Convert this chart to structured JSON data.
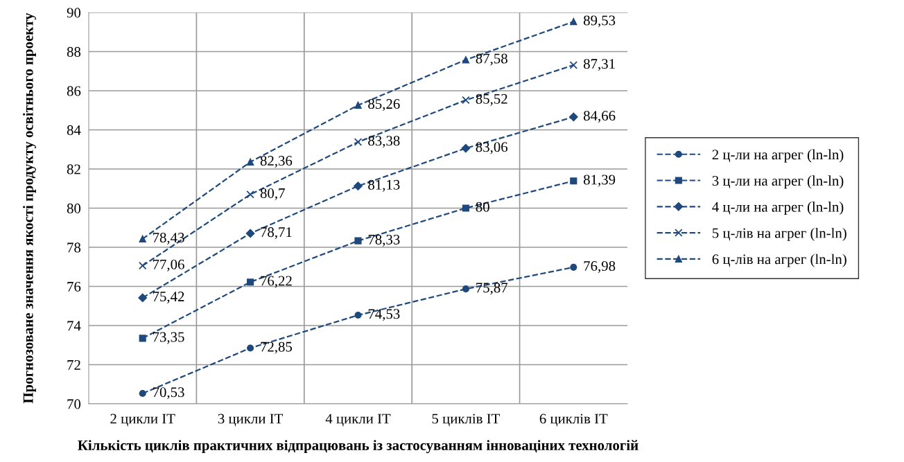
{
  "chart_data": {
    "type": "line",
    "xlabel": "Кількість циклів практичних відпрацювань із застосуванням інноваціних технологій",
    "ylabel": "Прогнозоване значення якості продукту освітнього проекту",
    "categories": [
      "2 цикли ІТ",
      "3 цикли ІТ",
      "4 цикли ІТ",
      "5 циклів ІТ",
      "6 циклів ІТ"
    ],
    "ylim": [
      70,
      90
    ],
    "yticks": [
      70,
      72,
      74,
      76,
      78,
      80,
      82,
      84,
      86,
      88,
      90
    ],
    "grid": true,
    "legend": "right",
    "line_style": "dashed",
    "series": [
      {
        "name": "2 ц-ли на агрег (ln-ln)",
        "color": "#1f497d",
        "marker": "circle",
        "values": [
          70.53,
          72.85,
          74.53,
          75.87,
          76.98
        ],
        "value_labels": [
          "70,53",
          "72,85",
          "74,53",
          "75,87",
          "76,98"
        ]
      },
      {
        "name": "3 ц-ли на агрег (ln-ln)",
        "color": "#1f497d",
        "marker": "square",
        "values": [
          73.35,
          76.22,
          78.33,
          80,
          81.39
        ],
        "value_labels": [
          "73,35",
          "76,22",
          "78,33",
          "80",
          "81,39"
        ]
      },
      {
        "name": "4 ц-ли на агрег (ln-ln)",
        "color": "#1f497d",
        "marker": "diamond",
        "values": [
          75.42,
          78.71,
          81.13,
          83.06,
          84.66
        ],
        "value_labels": [
          "75,42",
          "78,71",
          "81,13",
          "83,06",
          "84,66"
        ]
      },
      {
        "name": "5 ц-лів на агрег (ln-ln)",
        "color": "#1f497d",
        "marker": "cross",
        "values": [
          77.06,
          80.7,
          83.38,
          85.52,
          87.31
        ],
        "value_labels": [
          "77,06",
          "80,7",
          "83,38",
          "85,52",
          "87,31"
        ]
      },
      {
        "name": "6 ц-лів на агрег (ln-ln)",
        "color": "#1f497d",
        "marker": "triangle",
        "values": [
          78.43,
          82.36,
          85.26,
          87.58,
          89.53
        ],
        "value_labels": [
          "78,43",
          "82,36",
          "85,26",
          "87,58",
          "89,53"
        ]
      }
    ]
  }
}
